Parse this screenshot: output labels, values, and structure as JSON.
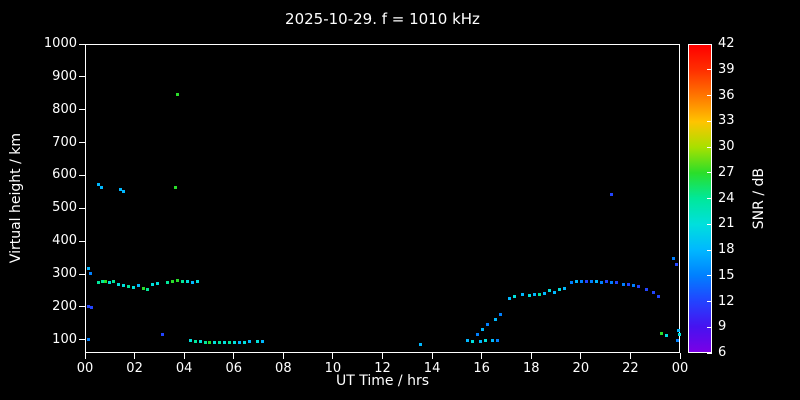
{
  "chart_data": {
    "type": "scatter",
    "title": "2025-10-29. f = 1010 kHz",
    "xlabel": "UT Time / hrs",
    "ylabel": "Virtual height / km",
    "colorbar_label": "SNR / dB",
    "xlim": [
      0,
      24
    ],
    "ylim": [
      60,
      1000
    ],
    "x_ticks": [
      0,
      2,
      4,
      6,
      8,
      10,
      12,
      14,
      16,
      18,
      20,
      22,
      24
    ],
    "x_tick_labels": [
      "00",
      "02",
      "04",
      "06",
      "08",
      "10",
      "12",
      "14",
      "16",
      "18",
      "20",
      "22",
      "00"
    ],
    "y_ticks": [
      100,
      200,
      300,
      400,
      500,
      600,
      700,
      800,
      900,
      1000
    ],
    "colorbar": {
      "min": 6,
      "max": 42,
      "ticks": [
        6,
        9,
        12,
        15,
        18,
        21,
        24,
        27,
        30,
        33,
        36,
        39,
        42
      ]
    },
    "palette": [
      {
        "v": 6,
        "hex": "#7a00e6"
      },
      {
        "v": 9,
        "hex": "#4613f0"
      },
      {
        "v": 12,
        "hex": "#2244ff"
      },
      {
        "v": 15,
        "hex": "#0080ff"
      },
      {
        "v": 18,
        "hex": "#00b8ff"
      },
      {
        "v": 21,
        "hex": "#00e0dc"
      },
      {
        "v": 24,
        "hex": "#00e89a"
      },
      {
        "v": 27,
        "hex": "#2ade2a"
      },
      {
        "v": 30,
        "hex": "#a8e000"
      },
      {
        "v": 33,
        "hex": "#ffc400"
      },
      {
        "v": 36,
        "hex": "#ff7800"
      },
      {
        "v": 39,
        "hex": "#ff3000"
      },
      {
        "v": 42,
        "hex": "#ff0000"
      }
    ],
    "points": [
      [
        0.1,
        320,
        18
      ],
      [
        0.18,
        306,
        15
      ],
      [
        0.1,
        205,
        12
      ],
      [
        0.22,
        200,
        12
      ],
      [
        0.12,
        104,
        15
      ],
      [
        0.5,
        576,
        18
      ],
      [
        0.62,
        566,
        18
      ],
      [
        0.52,
        278,
        24
      ],
      [
        0.66,
        280,
        24
      ],
      [
        0.8,
        282,
        27
      ],
      [
        0.95,
        278,
        21
      ],
      [
        1.1,
        280,
        24
      ],
      [
        1.4,
        560,
        18
      ],
      [
        1.52,
        554,
        18
      ],
      [
        1.3,
        272,
        21
      ],
      [
        1.5,
        268,
        21
      ],
      [
        1.7,
        265,
        24
      ],
      [
        1.9,
        262,
        21
      ],
      [
        2.1,
        268,
        18
      ],
      [
        2.3,
        258,
        27
      ],
      [
        2.5,
        256,
        24
      ],
      [
        2.7,
        270,
        21
      ],
      [
        2.9,
        274,
        21
      ],
      [
        3.1,
        120,
        12
      ],
      [
        3.3,
        278,
        24
      ],
      [
        3.5,
        281,
        27
      ],
      [
        3.7,
        284,
        27
      ],
      [
        3.9,
        282,
        24
      ],
      [
        4.1,
        280,
        21
      ],
      [
        4.3,
        278,
        18
      ],
      [
        4.5,
        280,
        21
      ],
      [
        3.7,
        850,
        27
      ],
      [
        3.62,
        565,
        27
      ],
      [
        4.2,
        100,
        21
      ],
      [
        4.4,
        98,
        24
      ],
      [
        4.6,
        97,
        21
      ],
      [
        4.8,
        96,
        24
      ],
      [
        5.0,
        95,
        27
      ],
      [
        5.2,
        95,
        21
      ],
      [
        5.4,
        96,
        24
      ],
      [
        5.6,
        95,
        21
      ],
      [
        5.8,
        94,
        24
      ],
      [
        6.0,
        95,
        21
      ],
      [
        6.2,
        96,
        18
      ],
      [
        6.4,
        95,
        21
      ],
      [
        6.6,
        97,
        18
      ],
      [
        6.9,
        98,
        21
      ],
      [
        7.1,
        97,
        18
      ],
      [
        13.5,
        88,
        18
      ],
      [
        15.4,
        100,
        18
      ],
      [
        15.6,
        97,
        21
      ],
      [
        15.9,
        99,
        18
      ],
      [
        16.1,
        101,
        21
      ],
      [
        16.4,
        100,
        18
      ],
      [
        16.6,
        102,
        15
      ],
      [
        15.8,
        120,
        15
      ],
      [
        16.0,
        135,
        18
      ],
      [
        16.2,
        150,
        15
      ],
      [
        16.5,
        165,
        18
      ],
      [
        16.7,
        180,
        15
      ],
      [
        17.1,
        230,
        18
      ],
      [
        17.3,
        236,
        21
      ],
      [
        17.6,
        240,
        18
      ],
      [
        17.9,
        238,
        21
      ],
      [
        18.1,
        242,
        18
      ],
      [
        18.3,
        240,
        24
      ],
      [
        18.5,
        244,
        18
      ],
      [
        18.7,
        252,
        21
      ],
      [
        18.9,
        248,
        18
      ],
      [
        19.1,
        256,
        21
      ],
      [
        19.3,
        260,
        18
      ],
      [
        19.6,
        278,
        15
      ],
      [
        19.8,
        280,
        18
      ],
      [
        20.0,
        282,
        15
      ],
      [
        20.2,
        280,
        12
      ],
      [
        20.4,
        282,
        15
      ],
      [
        20.6,
        280,
        18
      ],
      [
        20.8,
        278,
        15
      ],
      [
        21.0,
        280,
        12
      ],
      [
        21.2,
        278,
        15
      ],
      [
        21.4,
        276,
        12
      ],
      [
        21.2,
        545,
        12
      ],
      [
        21.7,
        272,
        15
      ],
      [
        21.9,
        270,
        12
      ],
      [
        22.1,
        268,
        15
      ],
      [
        22.3,
        266,
        12
      ],
      [
        22.6,
        256,
        12
      ],
      [
        22.9,
        246,
        12
      ],
      [
        23.1,
        236,
        12
      ],
      [
        23.2,
        122,
        27
      ],
      [
        23.4,
        116,
        21
      ],
      [
        23.7,
        350,
        15
      ],
      [
        23.8,
        332,
        12
      ],
      [
        23.9,
        130,
        18
      ],
      [
        23.95,
        118,
        21
      ],
      [
        23.85,
        100,
        15
      ]
    ]
  }
}
